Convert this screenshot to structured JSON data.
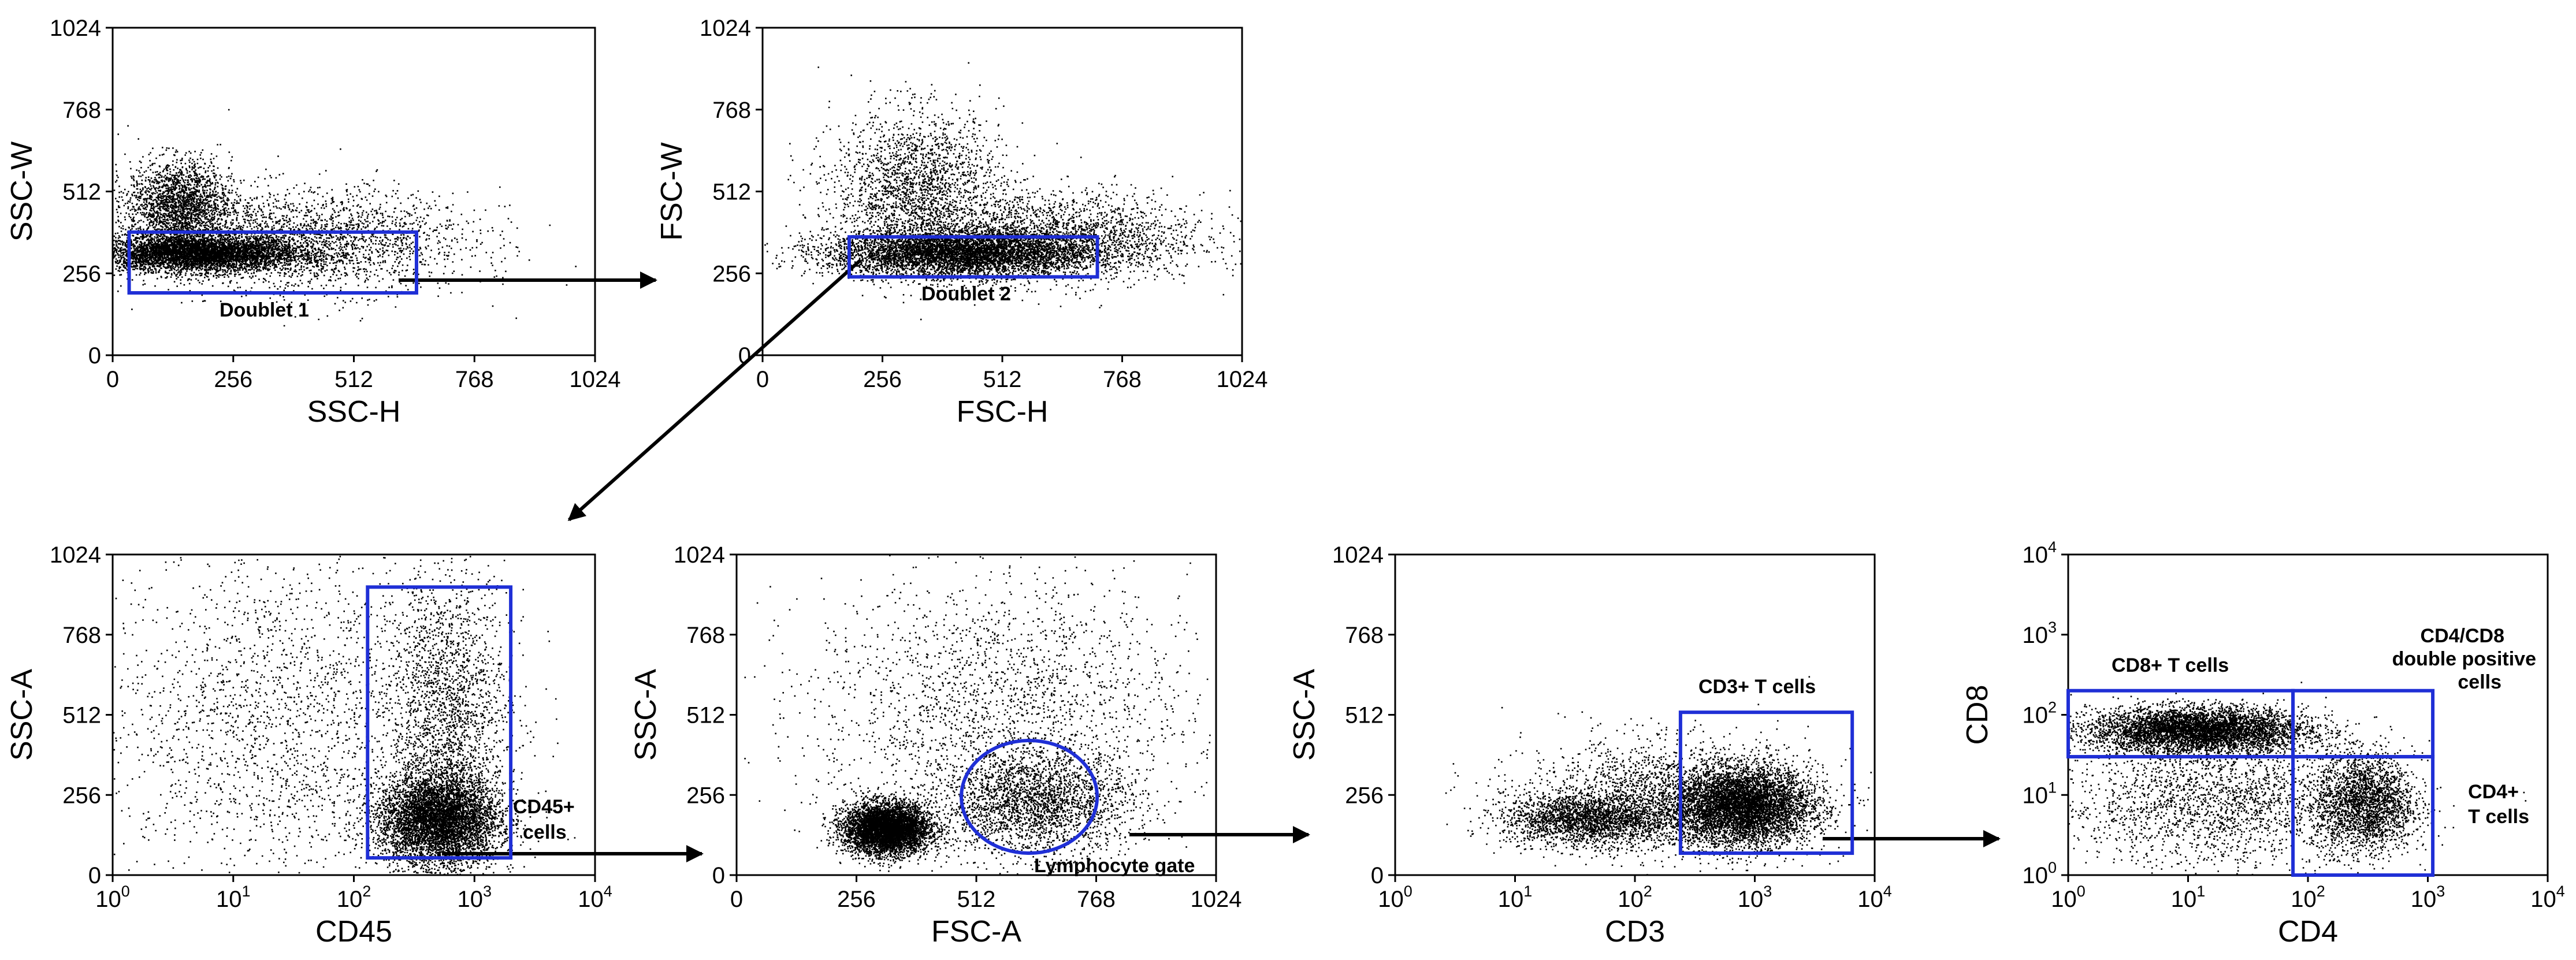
{
  "figure": {
    "description_free": true,
    "gate_color": "#1f2fd6",
    "dot_color": "#000000",
    "arrow_color": "#000000"
  },
  "chart_data": [
    {
      "id": "p1",
      "type": "scatter",
      "xlabel": "SSC-H",
      "ylabel": "SSC-W",
      "x_scale": "linear",
      "y_scale": "linear",
      "xlim": [
        0,
        1024
      ],
      "ylim": [
        0,
        1024
      ],
      "x_ticks": [
        "0",
        "256",
        "512",
        "768",
        "1024"
      ],
      "y_ticks": [
        "0",
        "256",
        "512",
        "768",
        "1024"
      ],
      "gates": [
        {
          "label": "Doublet 1",
          "shape": "rectangle",
          "x_range": [
            35,
            645
          ],
          "y_range": [
            195,
            385
          ]
        }
      ],
      "populations": [
        {
          "x_mean": 180,
          "y_mean": 320,
          "x_sd": 110,
          "y_sd": 28
        },
        {
          "x_mean": 140,
          "y_mean": 470,
          "x_sd": 55,
          "y_sd": 70
        },
        {
          "x_mean": 420,
          "y_mean": 360,
          "x_sd": 170,
          "y_sd": 80
        }
      ]
    },
    {
      "id": "p2",
      "type": "scatter",
      "xlabel": "FSC-H",
      "ylabel": "FSC-W",
      "x_scale": "linear",
      "y_scale": "linear",
      "xlim": [
        0,
        1024
      ],
      "ylim": [
        0,
        1024
      ],
      "x_ticks": [
        "0",
        "256",
        "512",
        "768",
        "1024"
      ],
      "y_ticks": [
        "0",
        "256",
        "512",
        "768",
        "1024"
      ],
      "gates": [
        {
          "label": "Doublet 2",
          "shape": "rectangle",
          "x_range": [
            185,
            715
          ],
          "y_range": [
            245,
            370
          ]
        }
      ],
      "populations": [
        {
          "x_mean": 420,
          "y_mean": 320,
          "x_sd": 140,
          "y_sd": 35
        },
        {
          "x_mean": 330,
          "y_mean": 520,
          "x_sd": 90,
          "y_sd": 120
        },
        {
          "x_mean": 620,
          "y_mean": 370,
          "x_sd": 160,
          "y_sd": 70
        }
      ]
    },
    {
      "id": "p3",
      "type": "scatter",
      "xlabel": "CD45",
      "ylabel": "SSC-A",
      "x_scale": "log",
      "y_scale": "linear",
      "xlim": [
        1,
        10000
      ],
      "ylim": [
        0,
        1024
      ],
      "x_ticks": [
        "10|0",
        "10|1",
        "10|2",
        "10|3",
        "10|4"
      ],
      "y_ticks": [
        "0",
        "256",
        "512",
        "768",
        "1024"
      ],
      "gates": [
        {
          "label": "CD45+",
          "label2": "cells",
          "shape": "rectangle",
          "x_range": [
            130,
            2000
          ],
          "y_range": [
            55,
            920
          ]
        }
      ],
      "populations": [
        {
          "x_mean": 500,
          "y_mean": 180,
          "x_sd": 0.25,
          "y_sd": 70
        },
        {
          "x_mean": 600,
          "y_mean": 480,
          "x_sd": 0.25,
          "y_sd": 250
        },
        {
          "x_mean": 25,
          "y_mean": 500,
          "x_sd": 0.8,
          "y_sd": 280
        }
      ]
    },
    {
      "id": "p4",
      "type": "scatter",
      "xlabel": "FSC-A",
      "ylabel": "SSC-A",
      "x_scale": "linear",
      "y_scale": "linear",
      "xlim": [
        0,
        1024
      ],
      "ylim": [
        0,
        1024
      ],
      "x_ticks": [
        "0",
        "256",
        "512",
        "768",
        "1024"
      ],
      "y_ticks": [
        "0",
        "256",
        "512",
        "768",
        "1024"
      ],
      "gates": [
        {
          "label": "Lymphocyte gate",
          "shape": "ellipse",
          "center": [
            625,
            250
          ],
          "radii": [
            145,
            180
          ]
        }
      ],
      "populations": [
        {
          "x_mean": 320,
          "y_mean": 150,
          "x_sd": 45,
          "y_sd": 40
        },
        {
          "x_mean": 640,
          "y_mean": 230,
          "x_sd": 100,
          "y_sd": 80
        },
        {
          "x_mean": 560,
          "y_mean": 520,
          "x_sd": 200,
          "y_sd": 220
        }
      ]
    },
    {
      "id": "p5",
      "type": "scatter",
      "xlabel": "CD3",
      "ylabel": "SSC-A",
      "x_scale": "log",
      "y_scale": "linear",
      "xlim": [
        1,
        10000
      ],
      "ylim": [
        0,
        1024
      ],
      "x_ticks": [
        "10|0",
        "10|1",
        "10|2",
        "10|3",
        "10|4"
      ],
      "y_ticks": [
        "0",
        "256",
        "512",
        "768",
        "1024"
      ],
      "gates": [
        {
          "label": "CD3+ T cells",
          "shape": "rectangle",
          "x_range": [
            240,
            6500
          ],
          "y_range": [
            70,
            520
          ]
        }
      ],
      "populations": [
        {
          "x_mean": 800,
          "y_mean": 220,
          "x_sd": 0.28,
          "y_sd": 60
        },
        {
          "x_mean": 40,
          "y_mean": 180,
          "x_sd": 0.35,
          "y_sd": 40
        },
        {
          "x_mean": 200,
          "y_mean": 250,
          "x_sd": 0.6,
          "y_sd": 90
        }
      ]
    },
    {
      "id": "p6",
      "type": "scatter",
      "xlabel": "CD4",
      "ylabel": "CD8",
      "x_scale": "log",
      "y_scale": "log",
      "xlim": [
        1,
        10000
      ],
      "ylim": [
        1,
        10000
      ],
      "x_ticks": [
        "10|0",
        "10|1",
        "10|2",
        "10|3",
        "10|4"
      ],
      "y_ticks": [
        "10|0",
        "10|1",
        "10|2",
        "10|3",
        "10|4"
      ],
      "gates": [
        {
          "label": "CD8+ T cells",
          "shape": "rectangle",
          "x_range": [
            1,
            75
          ],
          "y_range": [
            30,
            200
          ]
        },
        {
          "label": "CD4/CD8",
          "label2": "double positive",
          "label3": "cells",
          "shape": "rectangle",
          "x_range": [
            75,
            1100
          ],
          "y_range": [
            30,
            200
          ]
        },
        {
          "label": "CD4+",
          "label2": "T cells",
          "shape": "rectangle",
          "x_range": [
            75,
            1100
          ],
          "y_range": [
            1,
            30
          ]
        }
      ],
      "populations": [
        {
          "x_mean": 12,
          "y_mean": 65,
          "x_sd": 0.45,
          "y_sd": 0.14
        },
        {
          "x_mean": 300,
          "y_mean": 8,
          "x_sd": 0.2,
          "y_sd": 0.3
        },
        {
          "x_mean": 20,
          "y_mean": 8,
          "x_sd": 0.7,
          "y_sd": 0.4
        }
      ]
    }
  ]
}
